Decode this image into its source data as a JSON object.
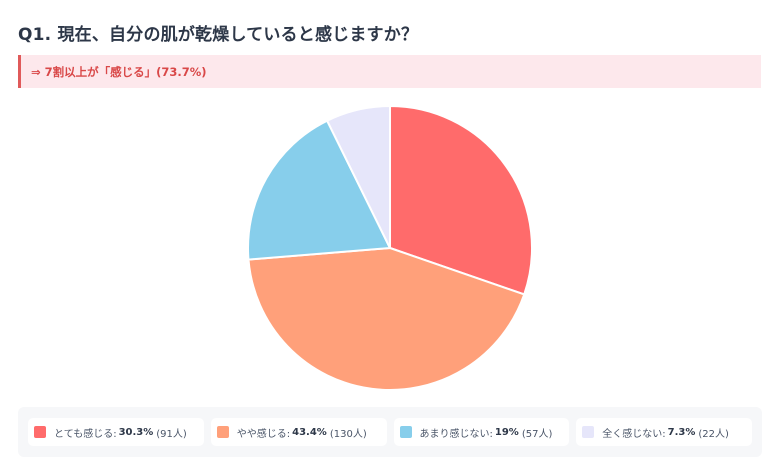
{
  "header": {
    "title": "Q1. 現在、自分の肌が乾燥していると感じますか？"
  },
  "banner": {
    "text": "⇒ 7割以上が「感じる」(73.7%)",
    "accent_color": "#e05a5a",
    "background_color": "#fde8ec"
  },
  "legend": {
    "items": [
      {
        "label": "とても感じる:",
        "percent": "30.3%",
        "count": "(91人)",
        "color": "#ff6b6b"
      },
      {
        "label": "やや感じる:",
        "percent": "43.4%",
        "count": "(130人)",
        "color": "#ffa07a"
      },
      {
        "label": "あまり感じない:",
        "percent": "19%",
        "count": "(57人)",
        "color": "#87ceeb"
      },
      {
        "label": "全く感じない:",
        "percent": "7.3%",
        "count": "(22人)",
        "color": "#e6e6fa"
      }
    ]
  },
  "chart_data": {
    "type": "pie",
    "title": "Q1. 現在、自分の肌が乾燥していると感じますか？",
    "subtitle": "⇒ 7割以上が「感じる」(73.7%)",
    "categories": [
      "とても感じる",
      "やや感じる",
      "あまり感じない",
      "全く感じない"
    ],
    "values": [
      30.3,
      43.4,
      19,
      7.3
    ],
    "counts": [
      91,
      130,
      57,
      22
    ],
    "colors": [
      "#ff6b6b",
      "#ffa07a",
      "#87ceeb",
      "#e6e6fa"
    ],
    "start_angle": "12 o'clock, clockwise",
    "legend_position": "bottom"
  }
}
